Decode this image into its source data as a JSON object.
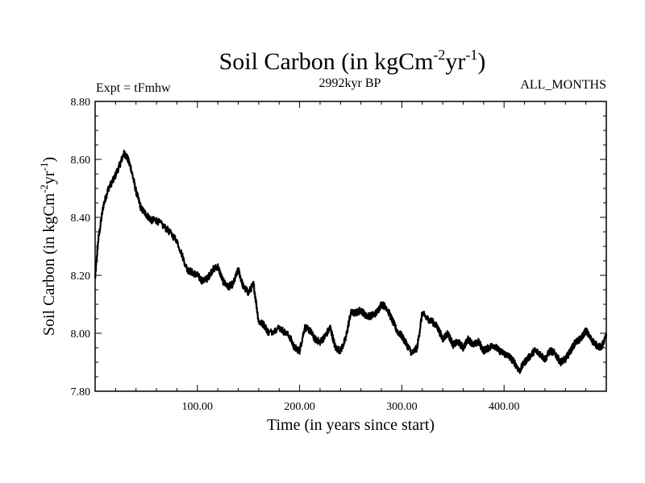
{
  "chart_data": {
    "type": "line",
    "title": "Soil Carbon (in kgCm",
    "title_exp1": "-2",
    "title_mid": "yr",
    "title_exp2": "-1",
    "title_end": ")",
    "experiment": "Expt = tFmhw",
    "period": "2992kyr BP",
    "months": "ALL_MONTHS",
    "xlabel": "Time (in years since start)",
    "ylabel": "Soil Carbon (in kgCm",
    "ylabel_exp1": "-2",
    "ylabel_mid": "yr",
    "ylabel_exp2": "-1",
    "ylabel_end": ")",
    "xlim": [
      0,
      500
    ],
    "ylim": [
      7.8,
      8.8
    ],
    "xticks": [
      100,
      200,
      300,
      400
    ],
    "xtick_labels": [
      "100.00",
      "200.00",
      "300.00",
      "400.00"
    ],
    "yticks": [
      7.8,
      8.0,
      8.2,
      8.4,
      8.6,
      8.8
    ],
    "ytick_labels": [
      "7.80",
      "8.00",
      "8.20",
      "8.40",
      "8.60",
      "8.80"
    ],
    "grid": false,
    "series": [
      {
        "name": "Soil Carbon",
        "color": "#000000",
        "noise_amplitude": 0.012,
        "x": [
          0,
          3,
          8,
          13,
          18,
          24,
          28,
          31,
          35,
          40,
          45,
          50,
          55,
          60,
          70,
          80,
          90,
          95,
          100,
          105,
          110,
          115,
          120,
          125,
          130,
          135,
          140,
          145,
          150,
          155,
          160,
          165,
          170,
          180,
          190,
          195,
          200,
          205,
          210,
          215,
          220,
          225,
          230,
          235,
          240,
          245,
          250,
          255,
          260,
          265,
          270,
          275,
          280,
          285,
          290,
          295,
          300,
          305,
          310,
          315,
          320,
          325,
          330,
          335,
          340,
          345,
          350,
          355,
          360,
          365,
          370,
          375,
          380,
          385,
          390,
          395,
          400,
          405,
          410,
          415,
          420,
          425,
          430,
          435,
          440,
          445,
          450,
          455,
          460,
          465,
          470,
          475,
          480,
          485,
          490,
          495,
          500
        ],
        "y": [
          8.19,
          8.32,
          8.44,
          8.5,
          8.53,
          8.58,
          8.62,
          8.61,
          8.57,
          8.49,
          8.43,
          8.41,
          8.39,
          8.39,
          8.36,
          8.32,
          8.22,
          8.21,
          8.2,
          8.18,
          8.19,
          8.22,
          8.23,
          8.18,
          8.16,
          8.17,
          8.22,
          8.16,
          8.14,
          8.17,
          8.04,
          8.03,
          8.0,
          8.02,
          7.99,
          7.95,
          7.94,
          8.02,
          8.01,
          7.98,
          7.97,
          7.99,
          8.02,
          7.95,
          7.94,
          7.98,
          8.07,
          8.07,
          8.08,
          8.06,
          8.06,
          8.07,
          8.1,
          8.09,
          8.05,
          8.01,
          7.99,
          7.96,
          7.93,
          7.95,
          8.07,
          8.05,
          8.04,
          8.02,
          7.98,
          8.0,
          7.96,
          7.97,
          7.95,
          7.98,
          7.96,
          7.97,
          7.94,
          7.95,
          7.96,
          7.94,
          7.93,
          7.92,
          7.9,
          7.87,
          7.9,
          7.92,
          7.94,
          7.93,
          7.91,
          7.94,
          7.93,
          7.9,
          7.91,
          7.94,
          7.97,
          7.98,
          8.01,
          7.98,
          7.96,
          7.95,
          7.99
        ]
      }
    ]
  }
}
